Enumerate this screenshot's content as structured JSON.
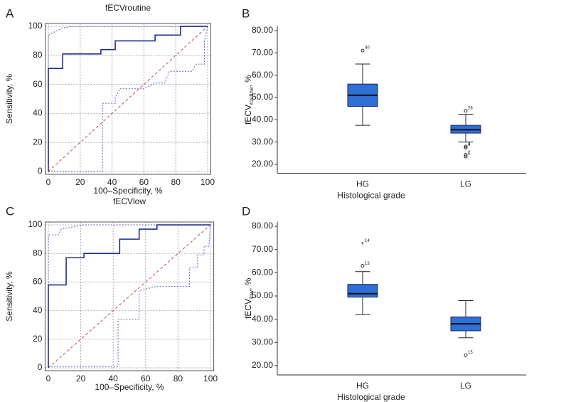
{
  "chart_data": [
    {
      "type": "roc",
      "panel_label": "A",
      "title": "fECVroutine",
      "xlabel": "100–Specificity, %",
      "ylabel": "Sensitivity, %",
      "xlim": [
        -2,
        102
      ],
      "ylim": [
        -2,
        102
      ],
      "xticks": [
        0,
        20,
        40,
        60,
        80,
        100
      ],
      "yticks": [
        0,
        20,
        40,
        60,
        80,
        100
      ],
      "grid": true,
      "series": [
        {
          "color": "#c0504d",
          "style": "dashed",
          "x": [
            0,
            100
          ],
          "y": [
            0,
            100
          ]
        },
        {
          "color": "#5565c8",
          "style": "dotted",
          "x": [
            0,
            0,
            9,
            15,
            100
          ],
          "y": [
            0,
            94,
            99,
            100,
            100
          ]
        },
        {
          "color": "#5565c8",
          "style": "dotted",
          "x": [
            0,
            34,
            34,
            42,
            42,
            45,
            60,
            67,
            73,
            76,
            90,
            93,
            98,
            98,
            100
          ],
          "y": [
            0,
            0,
            47,
            47,
            51,
            57,
            57,
            61,
            61,
            69,
            69,
            74,
            74,
            90,
            100
          ]
        },
        {
          "color": "#1f2f8f",
          "style": "solid",
          "x": [
            0,
            0,
            9,
            9,
            33,
            33,
            42,
            42,
            67,
            67,
            83,
            83,
            100
          ],
          "y": [
            0,
            71,
            71,
            81,
            81,
            84,
            84,
            90,
            90,
            94,
            94,
            100,
            100
          ]
        }
      ]
    },
    {
      "type": "box",
      "panel_label": "B",
      "ylabel": {
        "main": "fECV",
        "sub": "routine",
        "suffix": ", %"
      },
      "xlabel": "Histological grade",
      "categories": [
        "HG",
        "LG"
      ],
      "ylim": [
        16,
        82
      ],
      "yticks": [
        {
          "value": 20,
          "label": "20.00"
        },
        {
          "value": 30,
          "label": "30.00"
        },
        {
          "value": 40,
          "label": "40.00"
        },
        {
          "value": 50,
          "label": "50.00"
        },
        {
          "value": 60,
          "label": "60.00"
        },
        {
          "value": 70,
          "label": "70.00"
        },
        {
          "value": 80,
          "label": "80.00"
        }
      ],
      "color": "#2f6fd6",
      "boxes": [
        {
          "whislo": 37.5,
          "q1": 46,
          "med": 51,
          "q3": 56,
          "whishi": 65,
          "outliers": [
            71
          ],
          "outlier_labels": [
            "40"
          ],
          "outlier_markers": [
            "circle"
          ]
        },
        {
          "whislo": 30,
          "q1": 34,
          "med": 35.5,
          "q3": 37.5,
          "whishi": 42.5,
          "outliers": [
            44,
            28,
            27.5,
            24.3,
            23.5
          ],
          "outlier_labels": [
            "28",
            "3",
            "4",
            "2",
            "1"
          ],
          "outlier_markers": [
            "circle",
            "circle",
            "circle",
            "circle",
            "circle"
          ]
        }
      ]
    },
    {
      "type": "roc",
      "panel_label": "C",
      "title": "fECVlow",
      "xlabel": "100–Specificity, %",
      "ylabel": "Sensitivity, %",
      "xlim": [
        -2,
        102
      ],
      "ylim": [
        -2,
        102
      ],
      "xticks": [
        0,
        20,
        40,
        60,
        80,
        100
      ],
      "yticks": [
        0,
        20,
        40,
        60,
        80,
        100
      ],
      "grid": true,
      "series": [
        {
          "color": "#c0504d",
          "style": "dashed",
          "x": [
            0,
            100
          ],
          "y": [
            0,
            100
          ]
        },
        {
          "color": "#5565c8",
          "style": "dotted",
          "x": [
            0,
            0,
            6,
            8,
            22,
            100
          ],
          "y": [
            0,
            93,
            93,
            97,
            100,
            100
          ]
        },
        {
          "color": "#5565c8",
          "style": "dotted",
          "x": [
            0,
            43,
            43,
            56,
            56,
            67,
            87,
            87,
            92,
            92,
            96,
            96,
            99,
            100
          ],
          "y": [
            1,
            1,
            34,
            34,
            54,
            57,
            57,
            70,
            70,
            79,
            79,
            85,
            85,
            100
          ]
        },
        {
          "color": "#1f2f8f",
          "style": "solid",
          "x": [
            0,
            0,
            11,
            11,
            22,
            22,
            44,
            44,
            56,
            56,
            67,
            67,
            100
          ],
          "y": [
            0,
            58,
            58,
            77,
            77,
            80,
            80,
            90,
            90,
            97,
            97,
            100,
            100
          ]
        }
      ]
    },
    {
      "type": "box",
      "panel_label": "D",
      "ylabel": {
        "main": "fECV",
        "sub": "low",
        "suffix": ", %"
      },
      "xlabel": "Histological grade",
      "categories": [
        "HG",
        "LG"
      ],
      "ylim": [
        16,
        82
      ],
      "yticks": [
        {
          "value": 20,
          "label": "20.00"
        },
        {
          "value": 30,
          "label": "30.00"
        },
        {
          "value": 40,
          "label": "40.00"
        },
        {
          "value": 50,
          "label": "50.00"
        },
        {
          "value": 60,
          "label": "60.00"
        },
        {
          "value": 70,
          "label": "70.00"
        },
        {
          "value": 80,
          "label": "80.00"
        }
      ],
      "color": "#2f6fd6",
      "boxes": [
        {
          "whislo": 42,
          "q1": 49.5,
          "med": 51,
          "q3": 55,
          "whishi": 60.5,
          "outliers": [
            72.5,
            63
          ],
          "outlier_labels": [
            "14",
            "13"
          ],
          "outlier_markers": [
            "star",
            "circle"
          ]
        },
        {
          "whislo": 32,
          "q1": 35,
          "med": 38,
          "q3": 41,
          "whishi": 48,
          "outliers": [
            24.5
          ],
          "outlier_labels": [
            "15"
          ],
          "outlier_markers": [
            "circle"
          ]
        }
      ]
    }
  ]
}
